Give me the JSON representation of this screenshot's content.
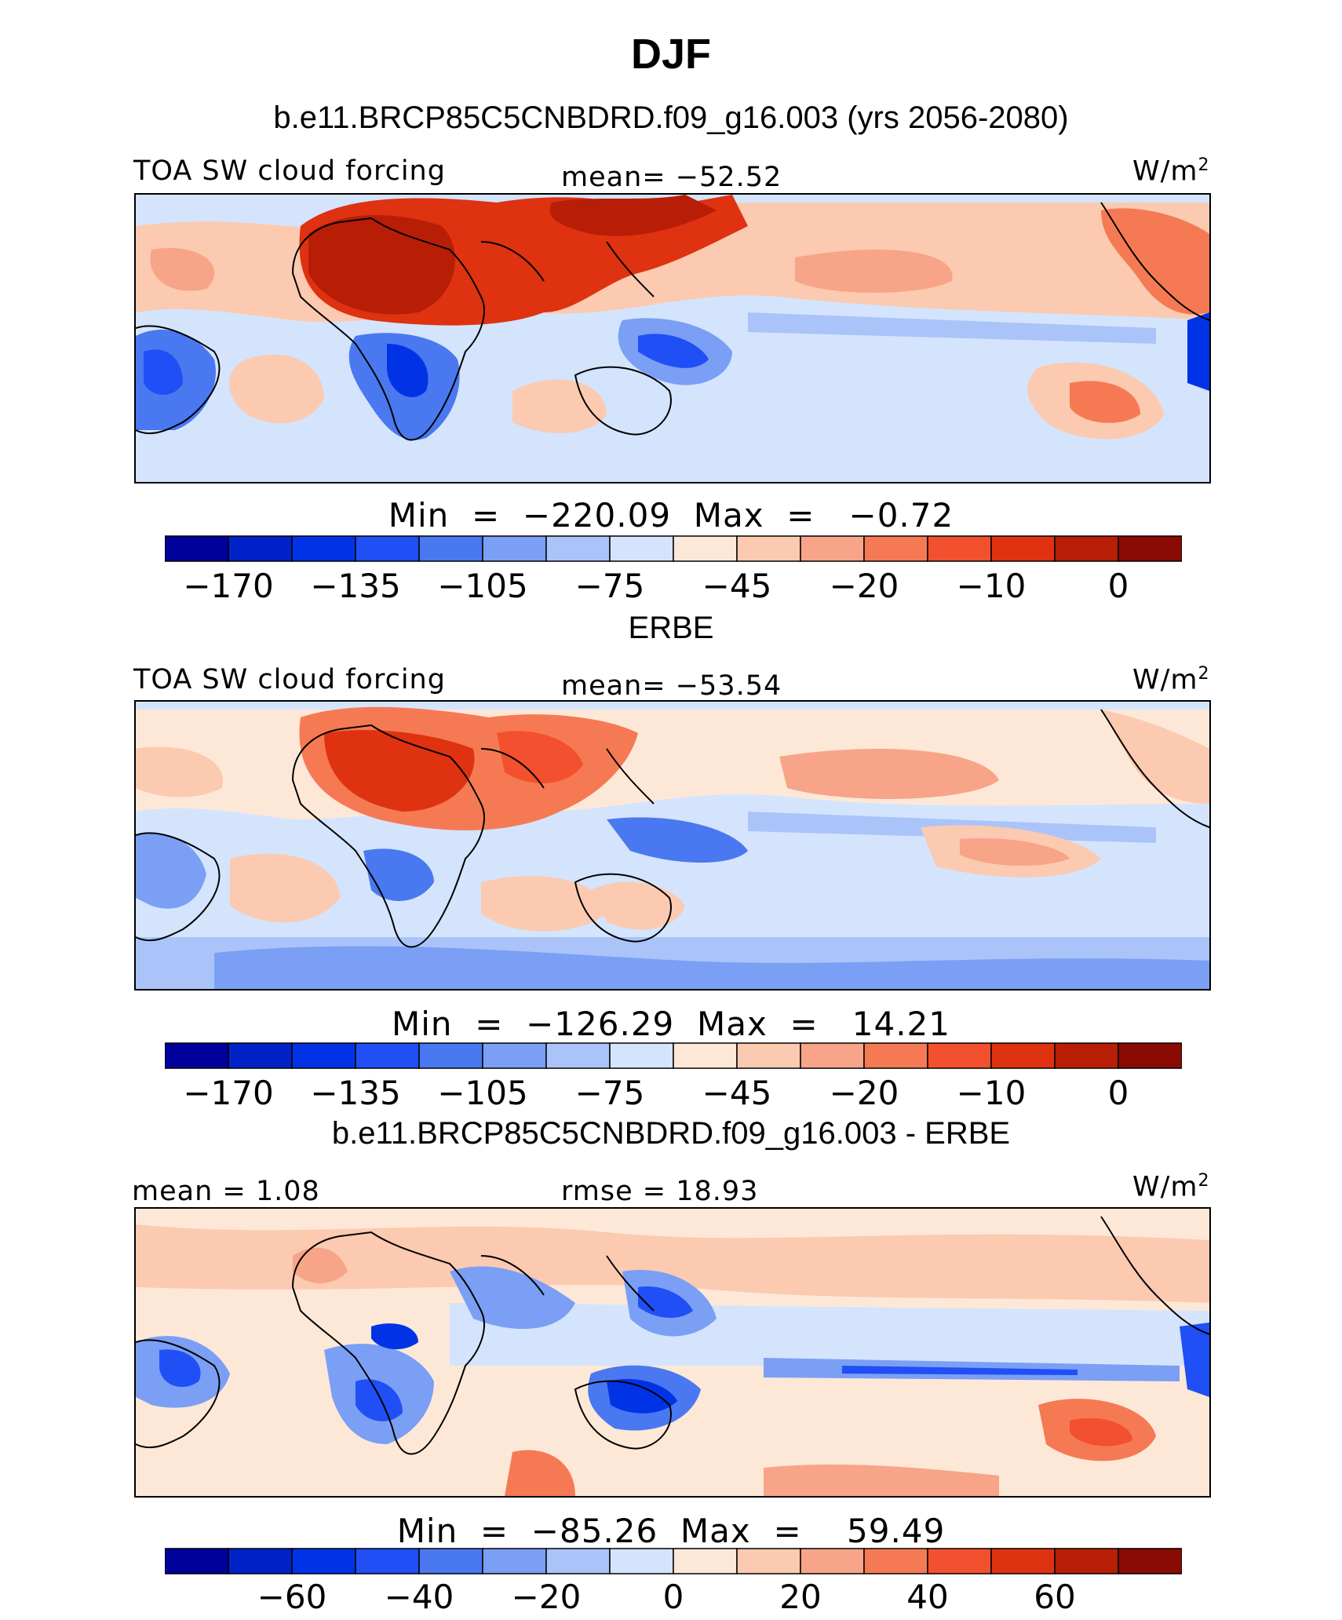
{
  "page_title": "DJF",
  "chart_data": [
    {
      "type": "heatmap",
      "subtitle": "b.e11.BRCP85C5CNBDRD.f09_g16.003 (yrs 2056-2080)",
      "left_label": "TOA SW cloud forcing",
      "center_label": "mean=  −52.52",
      "units_label": "W/m",
      "units_sup": "2",
      "min_max_label": "Min  =  −220.09  Max  =   −0.72",
      "min": -220.09,
      "max": -0.72,
      "mean": -52.52,
      "colorbar_ticks": [
        "−170",
        "−135",
        "−105",
        "−75",
        "−45",
        "−20",
        "−10",
        "0"
      ]
    },
    {
      "type": "heatmap",
      "subtitle": "ERBE",
      "left_label": "TOA SW cloud forcing",
      "center_label": "mean=  −53.54",
      "units_label": "W/m",
      "units_sup": "2",
      "min_max_label": "Min  =  −126.29  Max  =   14.21",
      "min": -126.29,
      "max": 14.21,
      "mean": -53.54,
      "colorbar_ticks": [
        "−170",
        "−135",
        "−105",
        "−75",
        "−45",
        "−20",
        "−10",
        "0"
      ]
    },
    {
      "type": "heatmap",
      "subtitle": "b.e11.BRCP85C5CNBDRD.f09_g16.003 - ERBE",
      "left_label": "mean  =    1.08",
      "center_label": "rmse  =   18.93",
      "units_label": "W/m",
      "units_sup": "2",
      "min_max_label": "Min  =  −85.26  Max  =    59.49",
      "min": -85.26,
      "max": 59.49,
      "mean": 1.08,
      "rmse": 18.93,
      "colorbar_ticks": [
        "−60",
        "−40",
        "−20",
        "0",
        "20",
        "40",
        "60"
      ]
    }
  ],
  "colors": {
    "palette": [
      "#00009a",
      "#0022c8",
      "#0033e6",
      "#1f4ff5",
      "#4a78f0",
      "#7a9ff5",
      "#aac4fa",
      "#d4e4fc",
      "#fde8d8",
      "#fbcab0",
      "#f7a488",
      "#f57a54",
      "#f2502e",
      "#df3210",
      "#b81e06",
      "#8a0a04"
    ]
  }
}
